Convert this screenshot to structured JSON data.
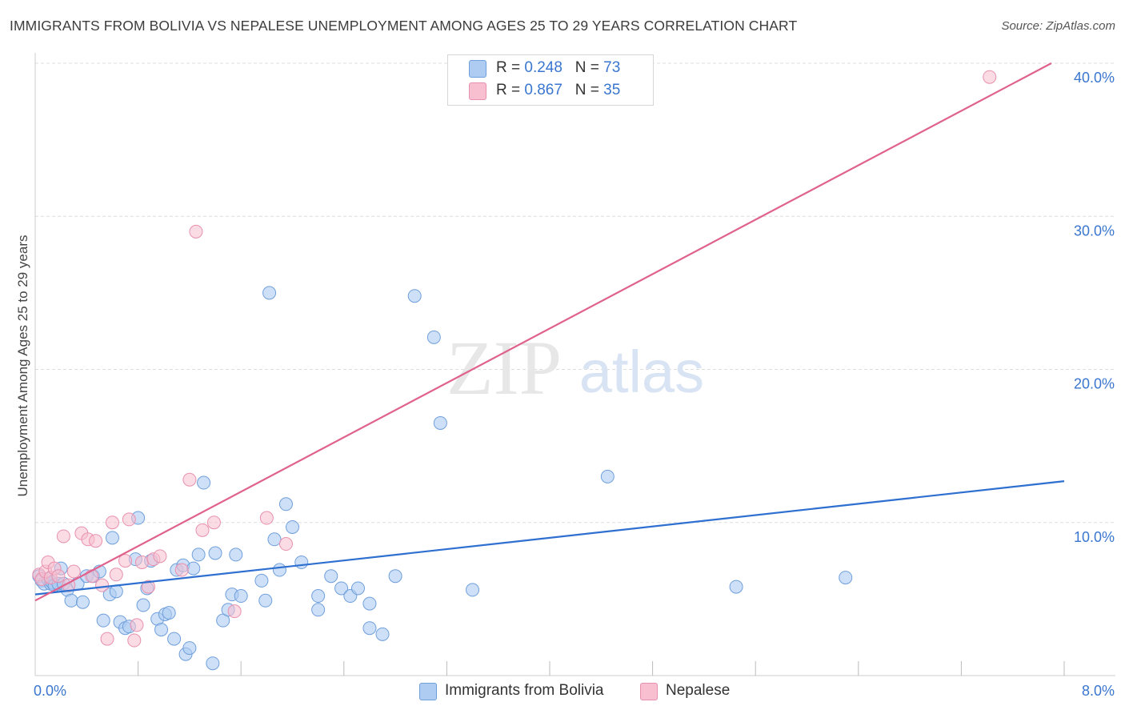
{
  "header": {
    "title": "IMMIGRANTS FROM BOLIVIA VS NEPALESE UNEMPLOYMENT AMONG AGES 25 TO 29 YEARS CORRELATION CHART",
    "source": "Source: ZipAtlas.com"
  },
  "watermark": {
    "zip": "ZIP",
    "atlas": "atlas"
  },
  "legend": {
    "rows": [
      {
        "r_label": "R = ",
        "r_value": "0.248",
        "n_label": "N = ",
        "n_value": "73"
      },
      {
        "r_label": "R = ",
        "r_value": "0.867",
        "n_label": "N = ",
        "n_value": "35"
      }
    ]
  },
  "bottom_legend": {
    "bolivia": "Immigrants from Bolivia",
    "nepalese": "Nepalese"
  },
  "colors": {
    "bolivia_fill": "#aecbf2",
    "bolivia_stroke": "#6f9fdc",
    "bolivia_line": "#2e6fd0",
    "nepalese_fill": "#f7bfd0",
    "nepalese_stroke": "#e890ae",
    "nepalese_line": "#e0628c",
    "tick_label": "#3a76cf",
    "grid": "#dddddd"
  },
  "chart_data": {
    "type": "scatter",
    "title": "IMMIGRANTS FROM BOLIVIA VS NEPALESE UNEMPLOYMENT AMONG AGES 25 TO 29 YEARS CORRELATION CHART",
    "xlabel": "",
    "ylabel": "Unemployment Among Ages 25 to 29 years",
    "xlim": [
      0,
      8
    ],
    "ylim": [
      0,
      40
    ],
    "x_tick_labels": [
      {
        "value": 0,
        "label": "0.0%"
      },
      {
        "value": 8,
        "label": "8.0%"
      }
    ],
    "y_tick_labels": [
      {
        "value": 10,
        "label": "10.0%"
      },
      {
        "value": 20,
        "label": "20.0%"
      },
      {
        "value": 30,
        "label": "30.0%"
      },
      {
        "value": 40,
        "label": "40.0%"
      }
    ],
    "legend_position": "top-center",
    "series": [
      {
        "name": "Immigrants from Bolivia",
        "r": 0.248,
        "n": 73,
        "trend": {
          "x": [
            0,
            8
          ],
          "y": [
            5.3,
            12.7
          ]
        },
        "points": [
          [
            0.03,
            6.5
          ],
          [
            0.05,
            6.2
          ],
          [
            0.07,
            6.0
          ],
          [
            0.1,
            6.3
          ],
          [
            0.12,
            6.0
          ],
          [
            0.13,
            6.1
          ],
          [
            0.15,
            5.9
          ],
          [
            0.18,
            6.0
          ],
          [
            0.22,
            6.0
          ],
          [
            0.25,
            5.6
          ],
          [
            0.28,
            4.9
          ],
          [
            0.33,
            6.0
          ],
          [
            0.37,
            4.8
          ],
          [
            0.4,
            6.5
          ],
          [
            0.45,
            6.5
          ],
          [
            0.5,
            6.8
          ],
          [
            0.53,
            3.6
          ],
          [
            0.58,
            5.3
          ],
          [
            0.6,
            9.0
          ],
          [
            0.63,
            5.5
          ],
          [
            0.66,
            3.5
          ],
          [
            0.7,
            3.1
          ],
          [
            0.73,
            3.2
          ],
          [
            0.78,
            7.6
          ],
          [
            0.8,
            10.3
          ],
          [
            0.84,
            4.6
          ],
          [
            0.87,
            5.7
          ],
          [
            0.9,
            7.5
          ],
          [
            0.95,
            3.7
          ],
          [
            0.98,
            3.0
          ],
          [
            1.01,
            4.0
          ],
          [
            1.04,
            4.1
          ],
          [
            1.08,
            2.4
          ],
          [
            1.1,
            6.9
          ],
          [
            1.15,
            7.2
          ],
          [
            1.17,
            1.4
          ],
          [
            1.2,
            1.8
          ],
          [
            1.23,
            7.0
          ],
          [
            1.27,
            7.9
          ],
          [
            1.31,
            12.6
          ],
          [
            1.38,
            0.8
          ],
          [
            1.4,
            8.0
          ],
          [
            1.46,
            3.6
          ],
          [
            1.5,
            4.3
          ],
          [
            1.53,
            5.3
          ],
          [
            1.56,
            7.9
          ],
          [
            1.6,
            5.2
          ],
          [
            1.76,
            6.2
          ],
          [
            1.79,
            4.9
          ],
          [
            1.82,
            25.0
          ],
          [
            1.86,
            8.9
          ],
          [
            1.9,
            6.9
          ],
          [
            1.95,
            11.2
          ],
          [
            2.0,
            9.7
          ],
          [
            2.07,
            7.4
          ],
          [
            2.2,
            5.2
          ],
          [
            2.3,
            6.5
          ],
          [
            2.38,
            5.7
          ],
          [
            2.45,
            5.2
          ],
          [
            2.51,
            5.7
          ],
          [
            2.6,
            4.7
          ],
          [
            2.7,
            2.7
          ],
          [
            2.8,
            6.5
          ],
          [
            2.95,
            24.8
          ],
          [
            3.1,
            22.1
          ],
          [
            3.15,
            16.5
          ],
          [
            3.4,
            5.6
          ],
          [
            4.45,
            13.0
          ],
          [
            5.45,
            5.8
          ],
          [
            6.3,
            6.4
          ],
          [
            0.2,
            7.0
          ],
          [
            2.2,
            4.3
          ],
          [
            2.6,
            3.1
          ]
        ]
      },
      {
        "name": "Nepalese",
        "r": 0.867,
        "n": 35,
        "trend": {
          "x": [
            0,
            7.9
          ],
          "y": [
            4.9,
            40.0
          ]
        },
        "points": [
          [
            0.03,
            6.6
          ],
          [
            0.05,
            6.3
          ],
          [
            0.08,
            6.8
          ],
          [
            0.1,
            7.4
          ],
          [
            0.12,
            6.4
          ],
          [
            0.15,
            7.0
          ],
          [
            0.18,
            6.5
          ],
          [
            0.22,
            9.1
          ],
          [
            0.26,
            5.9
          ],
          [
            0.3,
            6.8
          ],
          [
            0.36,
            9.3
          ],
          [
            0.41,
            8.9
          ],
          [
            0.44,
            6.5
          ],
          [
            0.47,
            8.8
          ],
          [
            0.52,
            5.9
          ],
          [
            0.56,
            2.4
          ],
          [
            0.6,
            10.0
          ],
          [
            0.63,
            6.6
          ],
          [
            0.7,
            7.5
          ],
          [
            0.73,
            10.2
          ],
          [
            0.77,
            2.3
          ],
          [
            0.79,
            3.3
          ],
          [
            0.83,
            7.4
          ],
          [
            0.88,
            5.8
          ],
          [
            0.92,
            7.6
          ],
          [
            0.97,
            7.8
          ],
          [
            1.14,
            6.9
          ],
          [
            1.2,
            12.8
          ],
          [
            1.25,
            29.0
          ],
          [
            1.3,
            9.5
          ],
          [
            1.39,
            10.0
          ],
          [
            1.55,
            4.2
          ],
          [
            1.8,
            10.3
          ],
          [
            1.95,
            8.6
          ],
          [
            7.42,
            39.1
          ]
        ]
      }
    ]
  }
}
